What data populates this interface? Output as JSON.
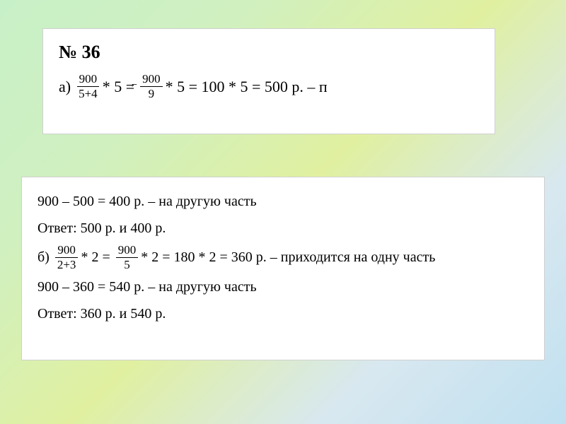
{
  "background_gradient": [
    "#c8f0c8",
    "#d0f0c0",
    "#e0f0a0",
    "#d8e8f0",
    "#c0e0f0"
  ],
  "card_bg": "#ffffff",
  "text_color": "#000000",
  "problem": {
    "number": "№ 36",
    "cursor_mark": "⌐",
    "partA": {
      "label": "а)",
      "frac1_num": "900",
      "frac1_den": "5+4",
      "op1": "* 5 =",
      "frac2_num": "900",
      "frac2_den": "9",
      "op2": "* 5 = 100 * 5 = 500 р. – п",
      "line2": "900 – 500 = 400 р. – на другую часть",
      "answer": "Ответ: 500 р. и 400 р."
    },
    "partB": {
      "label": "б)",
      "frac1_num": "900",
      "frac1_den": "2+3",
      "op1": "* 2 =",
      "frac2_num": "900",
      "frac2_den": "5",
      "op2": "* 2 = 180 * 2 = 360 р. – приходится на одну часть",
      "line2": "900 – 360 = 540 р. – на другую часть",
      "answer": "Ответ: 360 р. и 540 р."
    }
  },
  "typography": {
    "main_fontsize_pt": 20,
    "small_fontsize_pt": 18,
    "heading_fontsize_pt": 24,
    "font_family": "Times New Roman"
  }
}
